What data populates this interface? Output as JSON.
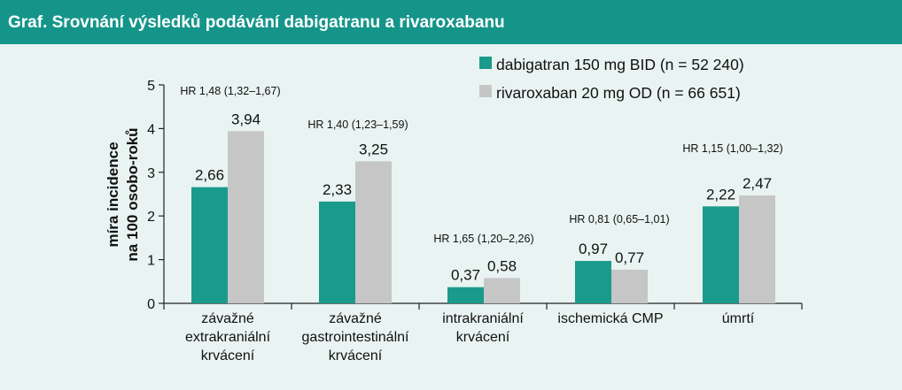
{
  "header": {
    "title": "Graf. Srovnání výsledků podávání dabigatranu a rivaroxabanu"
  },
  "colors": {
    "header_bg": "#15958a",
    "background": "#e9f4f2",
    "series1": "#1a9a8c",
    "series2": "#c6c6c6"
  },
  "chart_data": {
    "type": "bar",
    "ylabel_lines": [
      "míra incidence",
      "na 100 osobo-roků"
    ],
    "ylim": [
      0,
      5
    ],
    "yticks": [
      "0",
      "1",
      "2",
      "3",
      "4",
      "5"
    ],
    "grid": false,
    "legend_position": "top-right",
    "categories": [
      [
        "závažné",
        "extrakraniální",
        "krvácení"
      ],
      [
        "závažné",
        "gastrointestinální",
        "krvácení"
      ],
      [
        "intrakraniální",
        "krvácení"
      ],
      [
        "ischemická CMP"
      ],
      [
        "úmrtí"
      ]
    ],
    "series": [
      {
        "name": "dabigatran 150 mg BID (n = 52 240)",
        "values": [
          2.66,
          2.33,
          0.37,
          0.97,
          2.22
        ],
        "labels": [
          "2,66",
          "2,33",
          "0,37",
          "0,97",
          "2,22"
        ]
      },
      {
        "name": "rivaroxaban 20 mg OD (n = 66 651)",
        "values": [
          3.94,
          3.25,
          0.58,
          0.77,
          2.47
        ],
        "labels": [
          "3,94",
          "3,25",
          "0,58",
          "0,77",
          "2,47"
        ]
      }
    ],
    "annotations": [
      "HR 1,48 (1,32–1,67)",
      "HR 1,40 (1,23–1,59)",
      "HR 1,65 (1,20–2,26)",
      "HR 0,81 (0,65–1,01)",
      "HR 1,15 (1,00–1,32)"
    ]
  }
}
